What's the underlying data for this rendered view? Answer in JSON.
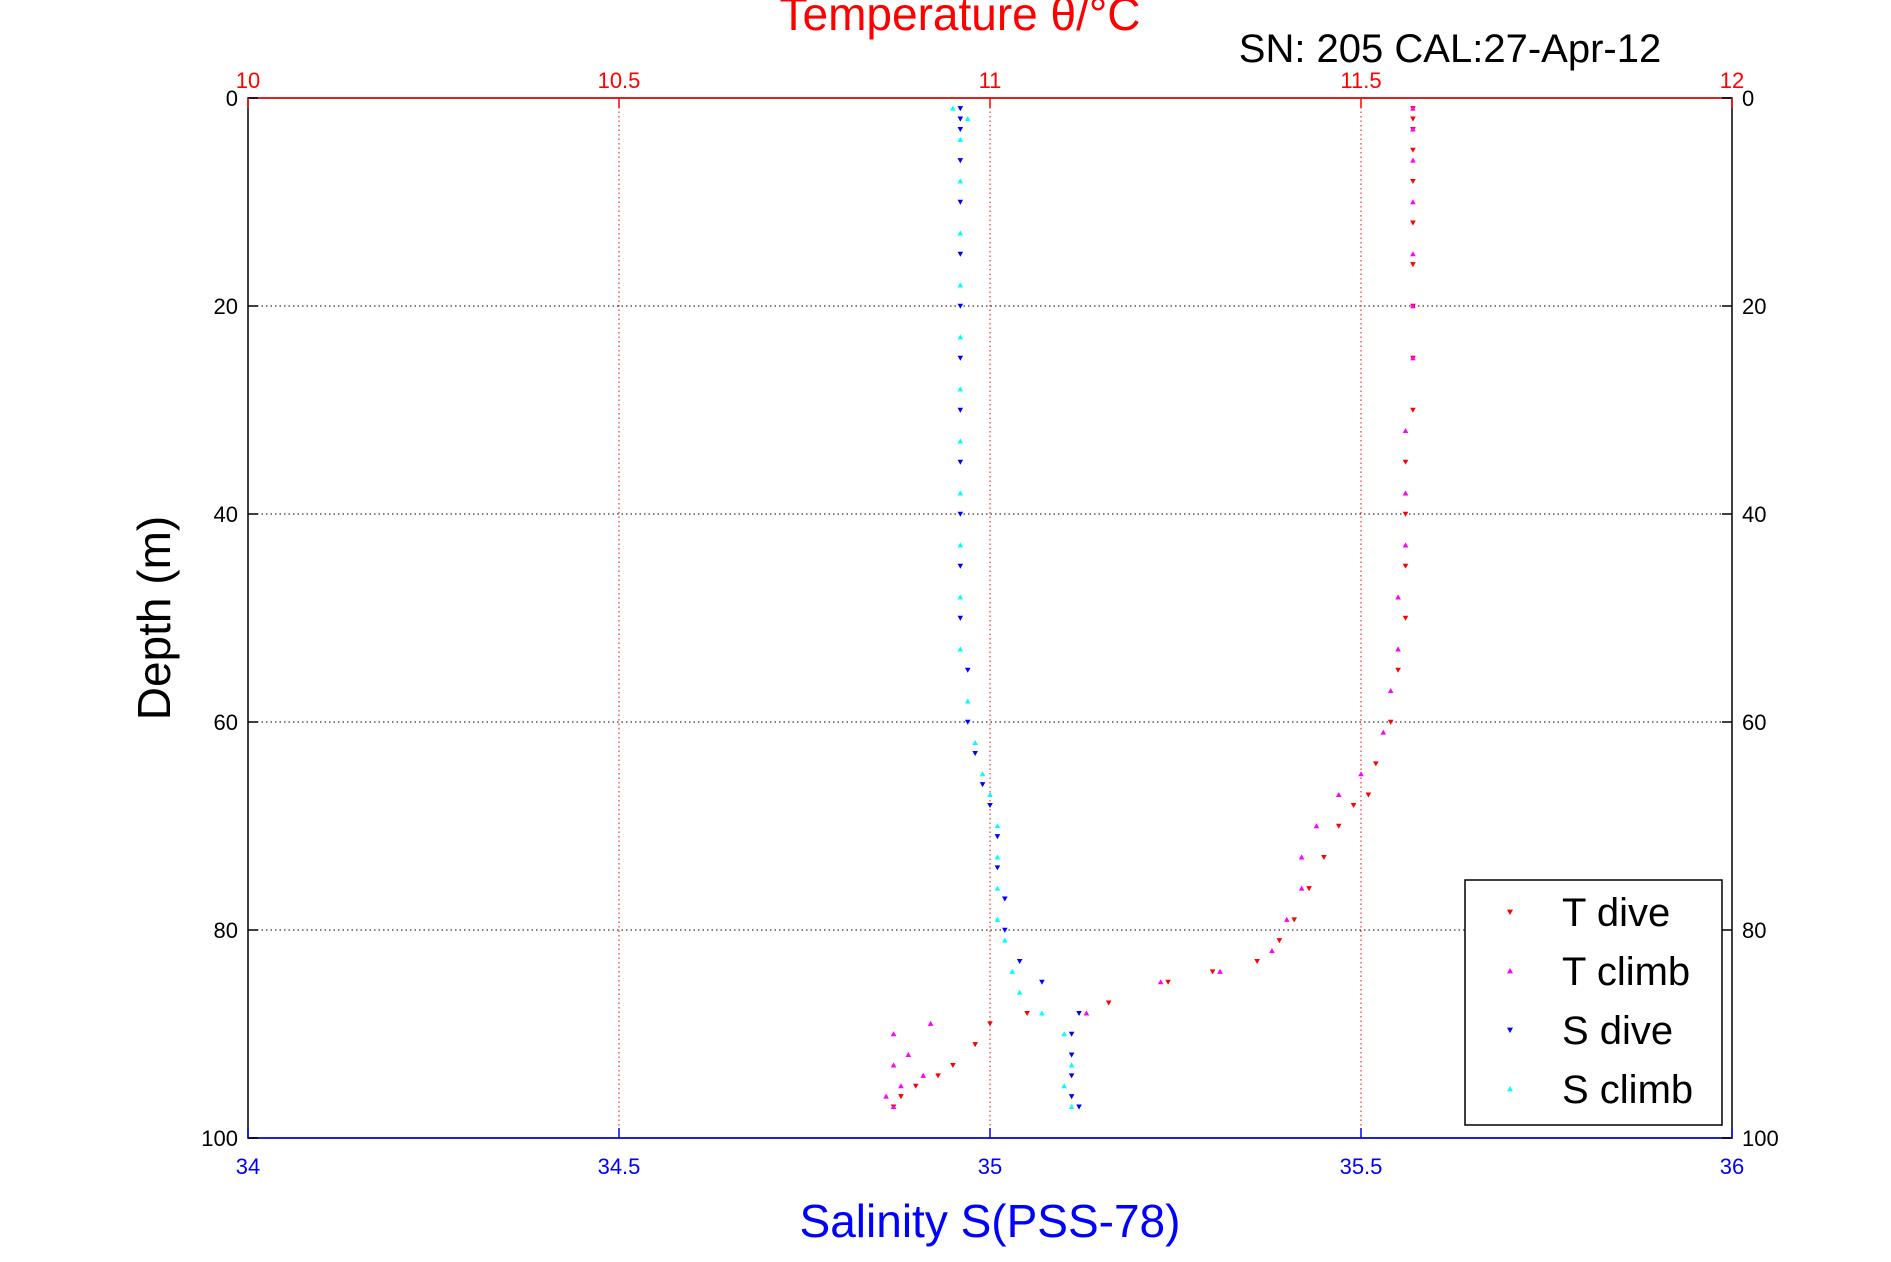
{
  "chart_data": {
    "type": "scatter",
    "top_title": "Temperature θ/°C",
    "subtitle": "SN: 205  CAL:27-Apr-12",
    "ylabel": "Depth (m)",
    "xlabel_bottom": "Salinity S(PSS-78)",
    "ylim": [
      0,
      100
    ],
    "y_reversed": true,
    "y_ticks": [
      0,
      20,
      40,
      60,
      80,
      100
    ],
    "x_top_lim": [
      10,
      12
    ],
    "x_top_ticks": [
      "10",
      "10.5",
      "11",
      "11.5",
      "12"
    ],
    "x_bottom_lim": [
      34,
      36
    ],
    "x_bottom_ticks": [
      "34",
      "34.5",
      "35",
      "35.5",
      "36"
    ],
    "grid": true,
    "legend_position": "bottom-right",
    "colors": {
      "top_axis": "#ff0000",
      "bottom_axis": "#0000ff",
      "grid": "#000000",
      "t_dive": "#ff0000",
      "t_climb": "#ff00ff",
      "s_dive": "#0000ff",
      "s_climb": "#00ffff"
    },
    "series": [
      {
        "name": "T dive",
        "axis": "top",
        "marker": "triangle-down",
        "color": "#ff0000",
        "points": [
          [
            11.57,
            1
          ],
          [
            11.57,
            2
          ],
          [
            11.57,
            3
          ],
          [
            11.57,
            5
          ],
          [
            11.57,
            8
          ],
          [
            11.57,
            12
          ],
          [
            11.57,
            16
          ],
          [
            11.57,
            20
          ],
          [
            11.57,
            25
          ],
          [
            11.57,
            30
          ],
          [
            11.56,
            35
          ],
          [
            11.56,
            40
          ],
          [
            11.56,
            45
          ],
          [
            11.56,
            50
          ],
          [
            11.55,
            55
          ],
          [
            11.54,
            60
          ],
          [
            11.52,
            64
          ],
          [
            11.51,
            67
          ],
          [
            11.49,
            68
          ],
          [
            11.47,
            70
          ],
          [
            11.45,
            73
          ],
          [
            11.43,
            76
          ],
          [
            11.41,
            79
          ],
          [
            11.39,
            81
          ],
          [
            11.36,
            83
          ],
          [
            11.3,
            84
          ],
          [
            11.24,
            85
          ],
          [
            11.16,
            87
          ],
          [
            11.05,
            88
          ],
          [
            11.0,
            89
          ],
          [
            10.98,
            91
          ],
          [
            10.95,
            93
          ],
          [
            10.93,
            94
          ],
          [
            10.9,
            95
          ],
          [
            10.88,
            96
          ],
          [
            10.87,
            97
          ]
        ]
      },
      {
        "name": "T climb",
        "axis": "top",
        "marker": "triangle-up",
        "color": "#ff00ff",
        "points": [
          [
            11.57,
            1
          ],
          [
            11.57,
            3
          ],
          [
            11.57,
            6
          ],
          [
            11.57,
            10
          ],
          [
            11.57,
            15
          ],
          [
            11.57,
            20
          ],
          [
            11.57,
            25
          ],
          [
            11.56,
            32
          ],
          [
            11.56,
            38
          ],
          [
            11.56,
            43
          ],
          [
            11.55,
            48
          ],
          [
            11.55,
            53
          ],
          [
            11.54,
            57
          ],
          [
            11.53,
            61
          ],
          [
            11.5,
            65
          ],
          [
            11.47,
            67
          ],
          [
            11.44,
            70
          ],
          [
            11.42,
            73
          ],
          [
            11.42,
            76
          ],
          [
            11.4,
            79
          ],
          [
            11.38,
            82
          ],
          [
            11.31,
            84
          ],
          [
            11.23,
            85
          ],
          [
            11.13,
            88
          ],
          [
            10.92,
            89
          ],
          [
            10.87,
            90
          ],
          [
            10.89,
            92
          ],
          [
            10.87,
            93
          ],
          [
            10.91,
            94
          ],
          [
            10.88,
            95
          ],
          [
            10.86,
            96
          ],
          [
            10.87,
            97
          ]
        ]
      },
      {
        "name": "S dive",
        "axis": "bottom",
        "marker": "triangle-down",
        "color": "#0000ff",
        "points": [
          [
            34.96,
            1
          ],
          [
            34.96,
            2
          ],
          [
            34.96,
            3
          ],
          [
            34.96,
            6
          ],
          [
            34.96,
            10
          ],
          [
            34.96,
            15
          ],
          [
            34.96,
            20
          ],
          [
            34.96,
            25
          ],
          [
            34.96,
            30
          ],
          [
            34.96,
            35
          ],
          [
            34.96,
            40
          ],
          [
            34.96,
            45
          ],
          [
            34.96,
            50
          ],
          [
            34.97,
            55
          ],
          [
            34.97,
            60
          ],
          [
            34.98,
            63
          ],
          [
            34.99,
            66
          ],
          [
            35.0,
            68
          ],
          [
            35.01,
            71
          ],
          [
            35.01,
            74
          ],
          [
            35.02,
            77
          ],
          [
            35.02,
            80
          ],
          [
            35.04,
            83
          ],
          [
            35.07,
            85
          ],
          [
            35.12,
            88
          ],
          [
            35.11,
            90
          ],
          [
            35.11,
            92
          ],
          [
            35.11,
            94
          ],
          [
            35.11,
            96
          ],
          [
            35.12,
            97
          ]
        ]
      },
      {
        "name": "S climb",
        "axis": "bottom",
        "marker": "triangle-up",
        "color": "#00ffff",
        "points": [
          [
            34.95,
            1
          ],
          [
            34.97,
            2
          ],
          [
            34.96,
            4
          ],
          [
            34.96,
            8
          ],
          [
            34.96,
            13
          ],
          [
            34.96,
            18
          ],
          [
            34.96,
            23
          ],
          [
            34.96,
            28
          ],
          [
            34.96,
            33
          ],
          [
            34.96,
            38
          ],
          [
            34.96,
            43
          ],
          [
            34.96,
            48
          ],
          [
            34.96,
            53
          ],
          [
            34.97,
            58
          ],
          [
            34.98,
            62
          ],
          [
            34.99,
            65
          ],
          [
            35.0,
            67
          ],
          [
            35.01,
            70
          ],
          [
            35.01,
            73
          ],
          [
            35.01,
            76
          ],
          [
            35.01,
            79
          ],
          [
            35.02,
            81
          ],
          [
            35.03,
            84
          ],
          [
            35.04,
            86
          ],
          [
            35.07,
            88
          ],
          [
            35.1,
            90
          ],
          [
            35.11,
            93
          ],
          [
            35.1,
            95
          ],
          [
            35.11,
            97
          ]
        ]
      }
    ]
  }
}
